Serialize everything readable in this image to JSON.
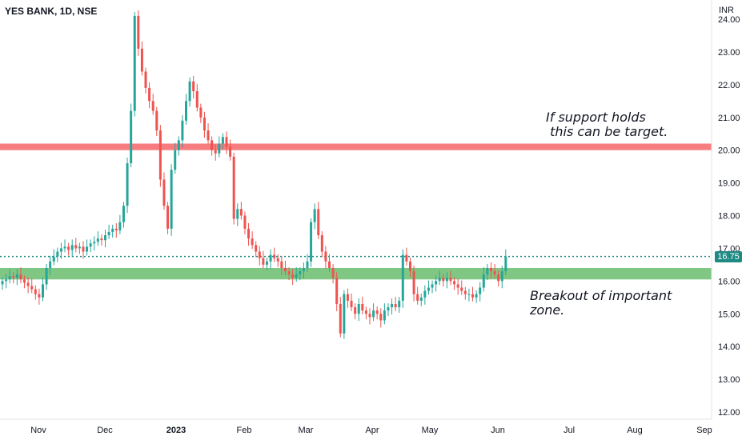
{
  "header": {
    "title": "YES BANK, 1D, NSE",
    "unit": "INR"
  },
  "annotations": {
    "resistance_note": "If support holds\n this can be target.",
    "breakout_note": "Breakout of important\nzone."
  },
  "last_price_label": "16.75",
  "colors": {
    "up": "#26a69a",
    "down": "#ef5350",
    "resistance_zone": "#f77c80",
    "support_zone": "#81c784",
    "price_line": "#1e8a84",
    "price_tag": "#1e8a84"
  },
  "chart_data": {
    "type": "candlestick",
    "title": "YES BANK, 1D, NSE",
    "y_unit": "INR",
    "ylim": [
      11.7,
      24.5
    ],
    "y_ticks": [
      "12.00",
      "13.00",
      "14.00",
      "15.00",
      "16.00",
      "17.00",
      "18.00",
      "19.00",
      "20.00",
      "21.00",
      "22.00",
      "23.00",
      "24.00"
    ],
    "x_ticks": [
      "Nov",
      "Dec",
      "2023",
      "Feb",
      "Mar",
      "Apr",
      "May",
      "Jun",
      "Jul",
      "Aug",
      "Sep"
    ],
    "last_price": 16.75,
    "zones": [
      {
        "kind": "resistance",
        "from": 20.0,
        "to": 20.2
      },
      {
        "kind": "support",
        "from": 16.05,
        "to": 16.4
      }
    ],
    "closes": [
      16.0,
      16.05,
      16.15,
      16.1,
      16.2,
      16.05,
      15.95,
      15.85,
      15.75,
      15.6,
      15.5,
      15.9,
      16.4,
      16.6,
      16.75,
      16.9,
      17.0,
      17.05,
      16.95,
      17.1,
      17.0,
      17.05,
      16.9,
      17.05,
      17.15,
      17.2,
      17.3,
      17.25,
      17.4,
      17.5,
      17.6,
      17.55,
      17.8,
      18.3,
      19.6,
      21.2,
      24.1,
      23.1,
      22.4,
      21.9,
      21.5,
      21.2,
      20.6,
      19.1,
      18.3,
      17.6,
      19.4,
      20.0,
      20.3,
      20.9,
      21.5,
      22.1,
      21.8,
      21.3,
      21.0,
      20.6,
      20.3,
      20.0,
      19.9,
      20.2,
      20.4,
      20.1,
      19.8,
      17.9,
      18.2,
      18.0,
      17.6,
      17.3,
      17.1,
      16.9,
      16.7,
      16.5,
      16.6,
      16.8,
      16.7,
      16.6,
      16.4,
      16.3,
      16.2,
      16.1,
      16.2,
      16.3,
      16.4,
      16.6,
      17.8,
      18.2,
      17.4,
      16.9,
      16.6,
      16.4,
      16.1,
      15.3,
      14.4,
      15.6,
      15.4,
      15.2,
      15.0,
      15.3,
      15.1,
      15.0,
      14.9,
      15.1,
      15.0,
      14.8,
      15.1,
      15.2,
      15.3,
      15.2,
      15.4,
      16.8,
      16.6,
      16.3,
      15.6,
      15.4,
      15.5,
      15.7,
      15.8,
      15.9,
      16.0,
      16.1,
      16.0,
      16.1,
      16.0,
      15.9,
      15.8,
      15.7,
      15.6,
      15.6,
      15.5,
      15.6,
      15.8,
      16.2,
      16.4,
      16.3,
      16.2,
      16.0,
      16.3,
      16.75
    ]
  }
}
